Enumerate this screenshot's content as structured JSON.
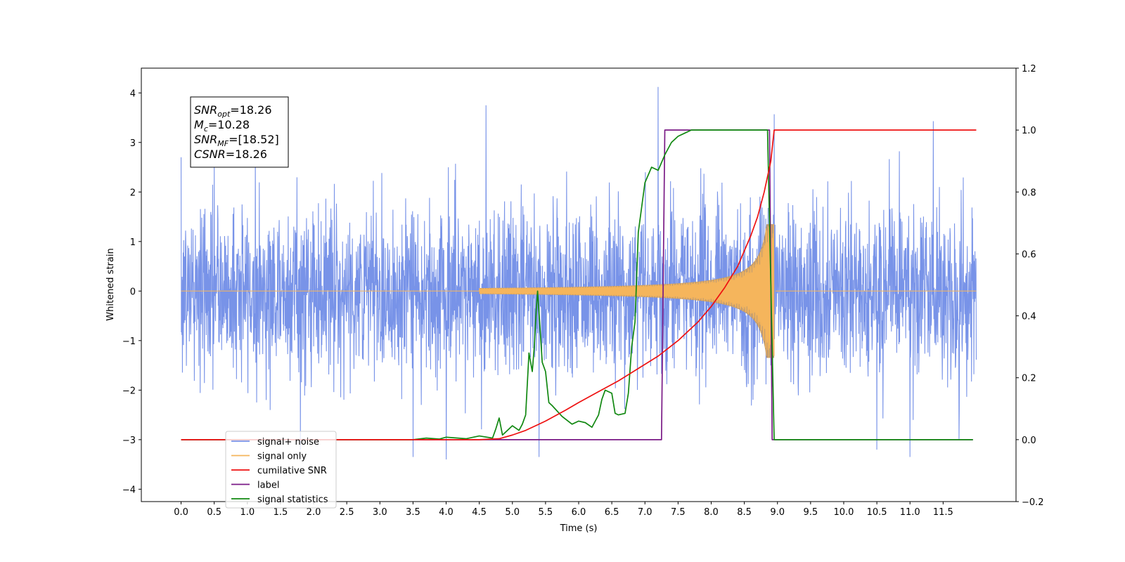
{
  "chart_data": {
    "type": "line",
    "xlabel": "Time (s)",
    "ylabel": "Whitened strain",
    "xlim": [
      -0.6,
      12.6
    ],
    "ylim": [
      -4.25,
      4.5
    ],
    "y2lim": [
      -0.2,
      1.2
    ],
    "x_ticks": [
      "0.0",
      "0.5",
      "1.0",
      "1.5",
      "2.0",
      "2.5",
      "3.0",
      "3.5",
      "4.0",
      "4.5",
      "5.0",
      "5.5",
      "6.0",
      "6.5",
      "7.0",
      "7.5",
      "8.0",
      "8.5",
      "9.0",
      "9.5",
      "10.0",
      "10.5",
      "11.0",
      "11.5"
    ],
    "y_ticks": [
      "4",
      "3",
      "2",
      "1",
      "0",
      "−1",
      "−2",
      "−3",
      "−4"
    ],
    "y2_ticks": [
      "1.2",
      "1.0",
      "0.8",
      "0.6",
      "0.4",
      "0.2",
      "0.0",
      "−0.2"
    ],
    "legend_position": "lower-left",
    "annotation": {
      "lines": [
        {
          "base": "SNR",
          "sub": "opt",
          "value": "=18.26"
        },
        {
          "base": "M",
          "sub": "c",
          "value": "=10.28"
        },
        {
          "base": "SNR",
          "sub": "MF",
          "value": "=[18.52]"
        },
        {
          "base": "CSNR",
          "sub": "",
          "value": "=18.26"
        }
      ]
    },
    "colors": {
      "noise": "#7893e8",
      "signal": "#f5b55c",
      "signal_fill": "#bc9a72",
      "csnr": "#ee1111",
      "label": "#7a1a86",
      "stats": "#118811"
    },
    "series": [
      {
        "name": "signal+ noise",
        "axis": "left",
        "kind": "noise",
        "range": [
          0.0,
          12.0
        ],
        "envelope_std": 1.0,
        "peak_x": [
          0.0,
          0.5,
          1.8,
          3.5,
          4.0,
          4.6,
          5.4,
          7.2,
          8.95,
          10.5,
          11.0,
          11.35
        ],
        "peak_y": [
          2.7,
          2.5,
          -3.2,
          -3.35,
          -3.4,
          3.75,
          -3.35,
          4.12,
          3.57,
          -3.2,
          -3.35,
          3.43
        ]
      },
      {
        "name": "signal only",
        "axis": "left",
        "kind": "chirp",
        "start": 4.5,
        "end": 8.95,
        "max_amplitude": 1.35
      },
      {
        "name": "cumilative SNR",
        "axis": "right",
        "kind": "line",
        "x": [
          0.0,
          4.5,
          4.8,
          5.0,
          5.2,
          5.5,
          5.8,
          6.0,
          6.3,
          6.6,
          6.9,
          7.2,
          7.5,
          7.8,
          8.0,
          8.2,
          8.4,
          8.5,
          8.6,
          8.7,
          8.8,
          8.85,
          8.9,
          8.95,
          9.0,
          12.0
        ],
        "y": [
          0.0,
          0.0,
          0.003,
          0.015,
          0.03,
          0.06,
          0.095,
          0.12,
          0.155,
          0.19,
          0.23,
          0.27,
          0.32,
          0.38,
          0.43,
          0.49,
          0.56,
          0.61,
          0.66,
          0.72,
          0.8,
          0.85,
          0.9,
          1.0,
          1.0,
          1.0
        ]
      },
      {
        "name": "label",
        "axis": "right",
        "kind": "line",
        "x": [
          0.0,
          7.25,
          7.3,
          8.88,
          8.92,
          11.95
        ],
        "y": [
          0.0,
          0.0,
          1.0,
          1.0,
          0.0,
          0.0
        ]
      },
      {
        "name": "signal statistics",
        "axis": "right",
        "kind": "line",
        "x": [
          0.0,
          3.5,
          3.7,
          3.9,
          4.0,
          4.3,
          4.5,
          4.7,
          4.75,
          4.8,
          4.85,
          4.9,
          5.0,
          5.1,
          5.15,
          5.2,
          5.25,
          5.3,
          5.33,
          5.36,
          5.38,
          5.42,
          5.45,
          5.5,
          5.55,
          5.6,
          5.75,
          5.9,
          6.0,
          6.1,
          6.2,
          6.3,
          6.35,
          6.4,
          6.5,
          6.55,
          6.6,
          6.7,
          6.75,
          6.8,
          6.85,
          6.9,
          6.95,
          7.0,
          7.1,
          7.2,
          7.3,
          7.4,
          7.5,
          7.6,
          7.7,
          7.8,
          8.0,
          8.5,
          8.8,
          8.85,
          8.95,
          9.0,
          11.95
        ],
        "y": [
          0.0,
          0.0,
          0.005,
          0.002,
          0.008,
          0.003,
          0.012,
          0.005,
          0.035,
          0.07,
          0.015,
          0.025,
          0.045,
          0.03,
          0.05,
          0.08,
          0.28,
          0.22,
          0.3,
          0.42,
          0.48,
          0.35,
          0.25,
          0.22,
          0.12,
          0.11,
          0.075,
          0.05,
          0.06,
          0.055,
          0.04,
          0.08,
          0.13,
          0.16,
          0.15,
          0.085,
          0.08,
          0.085,
          0.15,
          0.3,
          0.38,
          0.67,
          0.75,
          0.83,
          0.88,
          0.87,
          0.92,
          0.96,
          0.98,
          0.99,
          1.0,
          1.0,
          1.0,
          1.0,
          1.0,
          1.0,
          0.0,
          0.0,
          0.0
        ]
      }
    ],
    "legend_entries": [
      {
        "name": "signal+ noise",
        "color": "#7893e8"
      },
      {
        "name": "signal only",
        "color": "#f5b55c"
      },
      {
        "name": "cumilative SNR",
        "color": "#ee1111"
      },
      {
        "name": "label",
        "color": "#7a1a86"
      },
      {
        "name": "signal statistics",
        "color": "#118811"
      }
    ]
  }
}
